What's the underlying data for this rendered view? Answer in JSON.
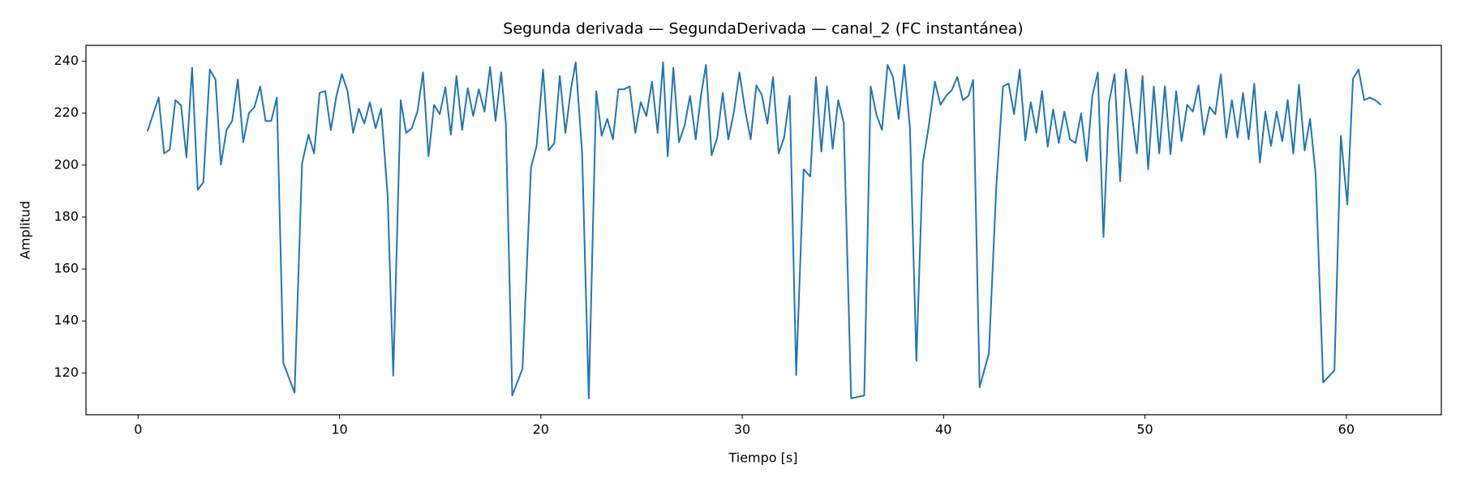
{
  "chart_data": {
    "type": "line",
    "title": "Segunda derivada — SegundaDerivada — canal_2 (FC instantánea)",
    "x_label": "Tiempo [s]",
    "y_label": "Amplitud",
    "xlim": [
      -2.59,
      64.72
    ],
    "ylim": [
      103.9,
      246.1
    ],
    "xticks": [
      0,
      10,
      20,
      30,
      40,
      50,
      60
    ],
    "yticks": [
      120,
      140,
      160,
      180,
      200,
      220,
      240
    ],
    "grid": false,
    "x": [
      0.46,
      1.02,
      1.29,
      1.57,
      1.85,
      2.13,
      2.4,
      2.68,
      2.96,
      3.24,
      3.56,
      3.84,
      4.11,
      4.39,
      4.67,
      4.95,
      5.22,
      5.5,
      5.78,
      6.06,
      6.33,
      6.61,
      6.89,
      7.21,
      7.77,
      8.14,
      8.46,
      8.74,
      9.01,
      9.29,
      9.57,
      9.85,
      10.12,
      10.4,
      10.68,
      10.96,
      11.23,
      11.51,
      11.79,
      12.07,
      12.39,
      12.67,
      13.04,
      13.31,
      13.59,
      13.87,
      14.15,
      14.42,
      14.7,
      14.98,
      15.26,
      15.53,
      15.81,
      16.09,
      16.37,
      16.64,
      16.92,
      17.2,
      17.48,
      17.75,
      18.03,
      18.26,
      18.58,
      19.09,
      19.51,
      19.79,
      20.11,
      20.39,
      20.67,
      20.94,
      21.22,
      21.5,
      21.73,
      22.05,
      22.38,
      22.75,
      23.02,
      23.3,
      23.58,
      23.85,
      24.13,
      24.41,
      24.69,
      24.96,
      25.24,
      25.52,
      25.8,
      26.07,
      26.3,
      26.58,
      26.86,
      27.14,
      27.41,
      27.69,
      27.97,
      28.2,
      28.48,
      28.76,
      29.03,
      29.31,
      29.59,
      29.86,
      30.14,
      30.42,
      30.7,
      30.97,
      31.25,
      31.53,
      31.81,
      32.08,
      32.36,
      32.68,
      33.05,
      33.38,
      33.66,
      33.93,
      34.21,
      34.49,
      34.77,
      35.04,
      35.41,
      36.06,
      36.38,
      36.66,
      36.94,
      37.22,
      37.49,
      37.77,
      38.05,
      38.33,
      38.65,
      38.97,
      39.25,
      39.57,
      39.85,
      40.13,
      40.41,
      40.68,
      40.96,
      41.24,
      41.47,
      41.79,
      42.25,
      42.62,
      42.95,
      43.23,
      43.5,
      43.78,
      44.06,
      44.33,
      44.61,
      44.89,
      45.17,
      45.44,
      45.72,
      46.0,
      46.28,
      46.55,
      46.83,
      47.11,
      47.39,
      47.66,
      47.94,
      48.22,
      48.49,
      48.77,
      49.05,
      49.33,
      49.6,
      49.88,
      50.16,
      50.44,
      50.71,
      50.99,
      51.27,
      51.55,
      51.82,
      52.1,
      52.38,
      52.66,
      52.93,
      53.21,
      53.49,
      53.77,
      54.04,
      54.32,
      54.6,
      54.87,
      55.15,
      55.43,
      55.71,
      55.98,
      56.26,
      56.54,
      56.82,
      57.09,
      57.37,
      57.65,
      57.93,
      58.2,
      58.48,
      58.85,
      59.41,
      59.73,
      60.05,
      60.33,
      60.61,
      60.89,
      61.16,
      61.44,
      61.72
    ],
    "series": [
      {
        "color": "#1f77b4",
        "values": [
          213,
          226,
          204.5,
          206,
          225,
          223,
          203,
          237.5,
          190.5,
          193.4,
          236.8,
          233,
          200.2,
          213.5,
          217,
          233,
          208.8,
          220,
          222.4,
          230.3,
          217,
          217,
          226,
          123.9,
          112.4,
          200.6,
          211.7,
          204.5,
          227.8,
          228.5,
          213.5,
          226.7,
          235,
          228.5,
          212.4,
          221.7,
          216,
          224.2,
          214.2,
          221.7,
          188.4,
          118.9,
          225,
          212.4,
          214.2,
          220.6,
          235.7,
          203.4,
          223.2,
          219.6,
          230,
          211.7,
          234.3,
          213.5,
          229.6,
          218.9,
          229.2,
          220.6,
          237.8,
          217,
          235.7,
          216.3,
          111.3,
          121.7,
          199.1,
          207.4,
          236.8,
          205.6,
          208.5,
          234.3,
          212.4,
          229.6,
          239.6,
          204.5,
          110.2,
          228.5,
          211.3,
          217.8,
          209.9,
          229.2,
          229.2,
          230.3,
          212.4,
          224.2,
          218.9,
          232.1,
          212.4,
          239.6,
          203.4,
          237.5,
          208.8,
          215.3,
          226.7,
          209.9,
          227.8,
          238.6,
          203.8,
          210.6,
          227.8,
          209.9,
          220.6,
          235.7,
          221.4,
          209.9,
          230.7,
          227.1,
          216,
          233.9,
          204.5,
          210.6,
          226.7,
          119.2,
          198.4,
          195.6,
          233.9,
          205.2,
          230.3,
          206.3,
          225,
          216.3,
          110.2,
          111.3,
          230.3,
          219.6,
          213.5,
          238.6,
          233.9,
          217.8,
          238.6,
          214.2,
          124.6,
          201,
          214.2,
          232.1,
          223.2,
          226.7,
          228.9,
          233.9,
          225,
          226.7,
          232.8,
          114.5,
          127.5,
          192,
          230.3,
          231.4,
          219.6,
          236.8,
          209.5,
          224.2,
          212.4,
          228.5,
          207,
          221.4,
          208.5,
          220.6,
          209.9,
          208.5,
          219.9,
          201.6,
          226.7,
          235.7,
          172.3,
          224.2,
          235,
          193.8,
          236.8,
          220.6,
          204.5,
          234.3,
          198.4,
          230.3,
          204.5,
          230.3,
          204.2,
          228.5,
          209.2,
          223.2,
          220.6,
          230.7,
          211.7,
          222.4,
          219.6,
          235,
          210.6,
          225,
          210.6,
          227.8,
          209.9,
          231.4,
          201,
          220.6,
          207.4,
          220.6,
          209.2,
          225,
          204.5,
          231,
          205.6,
          217.8,
          196.3,
          116.3,
          121,
          211.3,
          184.8,
          233.2,
          236.8,
          225,
          226,
          225,
          223.2
        ]
      }
    ]
  }
}
